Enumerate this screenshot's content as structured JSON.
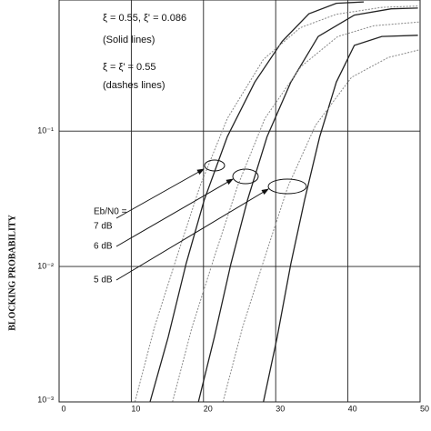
{
  "chart_data": {
    "type": "line",
    "ylabel": "BLOCKING PROBABILITY",
    "xlim": [
      0,
      50
    ],
    "xticks": [
      0,
      10,
      20,
      30,
      40,
      50
    ],
    "ylim": [
      0.001,
      0.93
    ],
    "yscale": "log",
    "yticks": [
      {
        "value": 0.001,
        "label": "10⁻³"
      },
      {
        "value": 0.01,
        "label": "10⁻²"
      },
      {
        "value": 0.1,
        "label": "10⁻¹"
      }
    ],
    "grid": true,
    "annotations": [
      "ξ = 0.55,  ξ' = 0.086",
      "(Solid lines)",
      "ξ = ξ' = 0.55",
      "(dashes lines)",
      "Eb/N0 =",
      "7 dB",
      "6 dB",
      "5 dB"
    ],
    "series": [
      {
        "style": "solid",
        "color": "#222222",
        "x": [
          12.6,
          15.1,
          17.6,
          20.1,
          23.3,
          27.1,
          30.9,
          34.6,
          38.4,
          42.2
        ],
        "values": [
          0.001,
          0.003,
          0.0105,
          0.031,
          0.091,
          0.23,
          0.46,
          0.735,
          0.88,
          0.9
        ]
      },
      {
        "style": "solid",
        "color": "#222222",
        "x": [
          19.3,
          21.5,
          23.8,
          26.1,
          28.8,
          32.1,
          35.9,
          40.9,
          46.0,
          49.7
        ],
        "values": [
          0.001,
          0.003,
          0.0105,
          0.031,
          0.091,
          0.23,
          0.5,
          0.72,
          0.8,
          0.81
        ]
      },
      {
        "style": "solid",
        "color": "#222222",
        "x": [
          28.3,
          30.2,
          32.1,
          34.0,
          36.1,
          38.4,
          40.9,
          44.7,
          49.7
        ],
        "values": [
          0.001,
          0.003,
          0.0105,
          0.031,
          0.091,
          0.23,
          0.43,
          0.5,
          0.51
        ]
      },
      {
        "style": "dashed",
        "color": "#888888",
        "x": [
          10.5,
          13.2,
          16.4,
          19.5,
          23.3,
          28.3,
          33.4,
          38.4,
          44.7,
          49.7
        ],
        "values": [
          0.001,
          0.00355,
          0.0122,
          0.039,
          0.124,
          0.339,
          0.58,
          0.73,
          0.82,
          0.84
        ]
      },
      {
        "style": "dashed",
        "color": "#888888",
        "x": [
          15.7,
          18.4,
          21.6,
          24.7,
          28.5,
          33.5,
          38.6,
          43.6,
          49.9
        ],
        "values": [
          0.001,
          0.00355,
          0.0122,
          0.039,
          0.124,
          0.3,
          0.5,
          0.6,
          0.64
        ]
      },
      {
        "style": "dashed",
        "color": "#888888",
        "x": [
          22.7,
          25.4,
          28.6,
          31.7,
          35.5,
          40.5,
          45.6,
          50
        ],
        "values": [
          0.001,
          0.00355,
          0.0122,
          0.039,
          0.11,
          0.25,
          0.35,
          0.4
        ]
      }
    ]
  }
}
